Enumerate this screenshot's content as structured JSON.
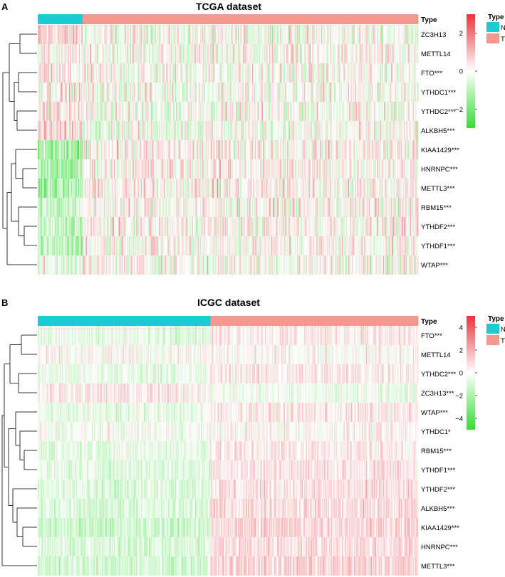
{
  "chart_data": [
    {
      "type": "heatmap",
      "panel_label": "A",
      "title": "TCGA  dataset",
      "annotation_label": "Type",
      "groups": [
        {
          "name": "N",
          "count": 50,
          "color": "#1fcbd3"
        },
        {
          "name": "T",
          "count": 374,
          "color": "#f4978e"
        }
      ],
      "genes": [
        "ZC3H13",
        "METTL14",
        "FTO***",
        "YTHDC1***",
        "YTHDC2***",
        "ALKBH5***",
        "KIAA1429***",
        "HNRNPC***",
        "METTL3***",
        "RBM15***",
        "YTHDF2***",
        "YTHDF1***",
        "WTAP***"
      ],
      "group_bias": [
        [
          0.6,
          -0.05
        ],
        [
          0.0,
          0.0
        ],
        [
          0.2,
          -0.02
        ],
        [
          0.3,
          -0.04
        ],
        [
          0.35,
          -0.05
        ],
        [
          0.5,
          -0.08
        ],
        [
          -1.4,
          0.2
        ],
        [
          -1.3,
          0.18
        ],
        [
          -1.2,
          0.2
        ],
        [
          -0.7,
          0.1
        ],
        [
          -0.8,
          0.12
        ],
        [
          -0.9,
          0.12
        ],
        [
          -0.2,
          0.05
        ]
      ],
      "colorbar": {
        "label": "",
        "ticks": [
          -2,
          0,
          2
        ],
        "range": [
          -3,
          3
        ],
        "colors": [
          "#33dd33",
          "#ffffff",
          "#e8333b"
        ]
      },
      "legend": {
        "title": "Type",
        "items": [
          {
            "label": "N",
            "color": "#1fcbd3"
          },
          {
            "label": "T",
            "color": "#f4978e"
          }
        ]
      }
    },
    {
      "type": "heatmap",
      "panel_label": "B",
      "title": "ICGC dataset",
      "annotation_label": "Type",
      "groups": [
        {
          "name": "N",
          "count": 202,
          "color": "#1fcbd3"
        },
        {
          "name": "T",
          "count": 243,
          "color": "#f4978e"
        }
      ],
      "genes": [
        "FTO***",
        "METTL14",
        "YTHDC2***",
        "ZC3H13***",
        "WTAP***",
        "YTHDC1*",
        "RBM15***",
        "YTHDF1***",
        "YTHDF2***",
        "ALKBH5***",
        "KIAA1429***",
        "HNRNPC***",
        "METTL3***"
      ],
      "group_bias": [
        [
          -0.3,
          0.3
        ],
        [
          0.0,
          0.05
        ],
        [
          -0.3,
          0.3
        ],
        [
          0.3,
          -0.2
        ],
        [
          -0.3,
          0.3
        ],
        [
          -0.1,
          0.1
        ],
        [
          -0.3,
          0.3
        ],
        [
          -0.4,
          0.4
        ],
        [
          -0.4,
          0.4
        ],
        [
          -0.5,
          0.5
        ],
        [
          -0.7,
          0.6
        ],
        [
          -0.5,
          0.5
        ],
        [
          -0.6,
          0.6
        ]
      ],
      "colorbar": {
        "label": "",
        "ticks": [
          -4,
          -2,
          0,
          2,
          4
        ],
        "range": [
          -5,
          5
        ],
        "colors": [
          "#33dd33",
          "#ffffff",
          "#e8333b"
        ]
      },
      "legend": {
        "title": "Type",
        "items": [
          {
            "label": "N",
            "color": "#1fcbd3"
          },
          {
            "label": "T",
            "color": "#f4978e"
          }
        ]
      }
    }
  ]
}
